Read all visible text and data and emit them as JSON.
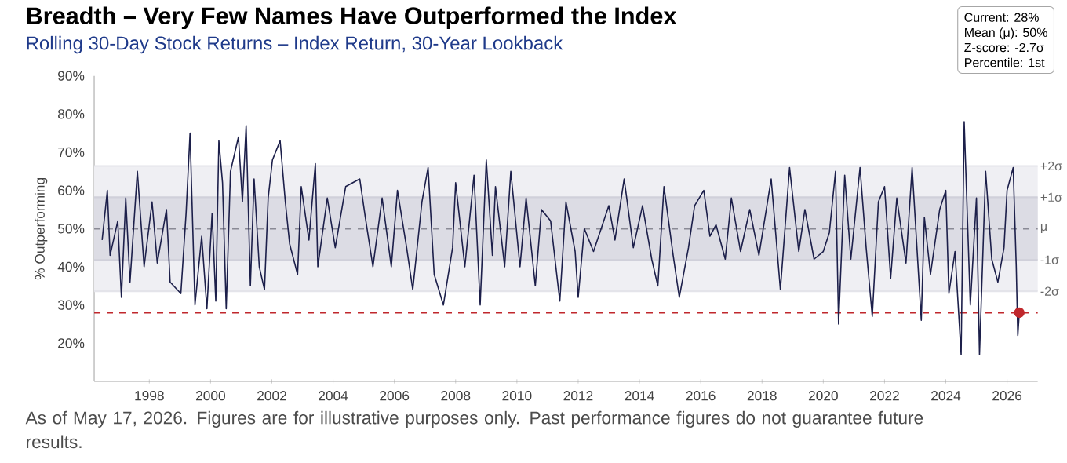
{
  "chart_data": {
    "type": "line",
    "title": "Breadth – Very Few Names Have Outperformed the Index",
    "subtitle": "Rolling 30-Day Stock Returns – Index Return, 30-Year Lookback",
    "ylabel": "% Outperforming",
    "annotations": [
      "Current: 28%",
      "Mean (μ): 50%",
      "Z-score: -2.7σ",
      "Percentile: 1st",
      "As of May 17, 2026. Figures are for illustrative purposes only. Past performance figures do not guarantee future results."
    ],
    "xlim": [
      1996.2,
      2027
    ],
    "xticks": [
      1998,
      2000,
      2002,
      2004,
      2006,
      2008,
      2010,
      2012,
      2014,
      2016,
      2018,
      2020,
      2022,
      2024,
      2026
    ],
    "ylim": [
      10,
      90
    ],
    "yticks": [
      {
        "value": 20,
        "label": "20%"
      },
      {
        "value": 30,
        "label": "30%"
      },
      {
        "value": 40,
        "label": "40%"
      },
      {
        "value": 50,
        "label": "50%"
      },
      {
        "value": 60,
        "label": "60%"
      },
      {
        "value": 70,
        "label": "70%"
      },
      {
        "value": 80,
        "label": "80%"
      },
      {
        "value": 90,
        "label": "90%"
      }
    ],
    "bands": [
      {
        "axis": "y",
        "from": 33.6,
        "to": 66.4,
        "color": "#efeff3"
      },
      {
        "axis": "y",
        "from": 41.8,
        "to": 58.2,
        "color": "#dcdce4"
      }
    ],
    "ref_lines": [
      {
        "axis": "y",
        "value": 66.4,
        "label": "+2σ",
        "color": "#e4e4ea",
        "line_style": "solid"
      },
      {
        "axis": "y",
        "value": 58.2,
        "label": "+1σ",
        "color": "#d0d0da",
        "line_style": "solid"
      },
      {
        "axis": "y",
        "value": 50,
        "label": "μ",
        "color": "#8a8a95",
        "line_style": "dashed"
      },
      {
        "axis": "y",
        "value": 41.8,
        "label": "-1σ",
        "color": "#d0d0da",
        "line_style": "solid"
      },
      {
        "axis": "y",
        "value": 33.6,
        "label": "-2σ",
        "color": "#e4e4ea",
        "line_style": "solid"
      },
      {
        "axis": "y",
        "value": 28,
        "color": "#c0282d",
        "line_style": "dashed"
      }
    ],
    "series": [
      {
        "color": "#1c1f4a",
        "x": [
          1996.46,
          1996.63,
          1996.72,
          1996.97,
          1997.09,
          1997.23,
          1997.37,
          1997.61,
          1997.83,
          1998.09,
          1998.26,
          1998.56,
          1998.68,
          1999.03,
          1999.2,
          1999.33,
          1999.49,
          1999.71,
          1999.88,
          2000.05,
          2000.17,
          2000.27,
          2000.39,
          2000.51,
          2000.65,
          2000.91,
          2001.04,
          2001.16,
          2001.3,
          2001.42,
          2001.59,
          2001.76,
          2001.88,
          2002.02,
          2002.27,
          2002.44,
          2002.58,
          2002.84,
          2002.96,
          2003.21,
          2003.42,
          2003.5,
          2003.81,
          2004.07,
          2004.41,
          2004.87,
          2005.05,
          2005.3,
          2005.6,
          2005.9,
          2006.1,
          2006.4,
          2006.6,
          2006.9,
          2007.1,
          2007.3,
          2007.6,
          2007.9,
          2008.0,
          2008.3,
          2008.6,
          2008.8,
          2009.0,
          2009.2,
          2009.3,
          2009.6,
          2009.8,
          2010.1,
          2010.3,
          2010.6,
          2010.8,
          2011.1,
          2011.4,
          2011.6,
          2011.9,
          2012.0,
          2012.2,
          2012.5,
          2013.0,
          2013.2,
          2013.5,
          2013.8,
          2014.1,
          2014.4,
          2014.6,
          2014.8,
          2015.1,
          2015.3,
          2015.6,
          2015.8,
          2016.1,
          2016.3,
          2016.5,
          2016.8,
          2017.0,
          2017.3,
          2017.6,
          2017.9,
          2018.3,
          2018.6,
          2018.9,
          2019.2,
          2019.4,
          2019.7,
          2020.0,
          2020.2,
          2020.4,
          2020.5,
          2020.7,
          2020.9,
          2021.2,
          2021.4,
          2021.6,
          2021.8,
          2022.0,
          2022.2,
          2022.4,
          2022.7,
          2022.9,
          2023.2,
          2023.3,
          2023.5,
          2023.8,
          2024.0,
          2024.1,
          2024.3,
          2024.5,
          2024.6,
          2024.8,
          2025.0,
          2025.1,
          2025.3,
          2025.5,
          2025.7,
          2025.9,
          2026.0,
          2026.1,
          2026.2,
          2026.3,
          2026.35,
          2026.4
        ],
        "values": [
          47,
          60,
          43,
          52,
          32,
          58,
          36,
          65,
          40,
          57,
          41,
          55,
          36,
          33,
          54,
          75,
          30,
          48,
          29,
          54,
          31,
          73,
          62,
          29,
          65,
          74,
          57,
          77,
          35,
          63,
          40,
          34,
          58,
          68,
          73,
          57,
          46,
          38,
          61,
          47,
          67,
          40,
          58,
          45,
          61,
          63,
          53,
          40,
          58,
          40,
          60,
          45,
          34,
          57,
          66,
          38,
          30,
          45,
          62,
          40,
          64,
          30,
          68,
          43,
          61,
          40,
          65,
          40,
          58,
          35,
          55,
          52,
          31,
          57,
          44,
          32,
          50,
          44,
          56,
          47,
          63,
          45,
          56,
          42,
          35,
          61,
          43,
          32,
          45,
          56,
          60,
          48,
          51,
          42,
          58,
          44,
          55,
          43,
          63,
          34,
          66,
          44,
          55,
          42,
          44,
          49,
          65,
          25,
          64,
          42,
          66,
          45,
          27,
          57,
          61,
          37,
          58,
          41,
          66,
          26,
          53,
          38,
          55,
          60,
          33,
          44,
          17,
          78,
          30,
          58,
          17,
          65,
          42,
          36,
          45,
          60,
          63,
          66,
          40,
          22,
          28
        ]
      },
      {
        "type": "scatter",
        "color": "#c0282d",
        "marker": "circle",
        "x": [
          2026.4
        ],
        "values": [
          28
        ]
      }
    ]
  }
}
